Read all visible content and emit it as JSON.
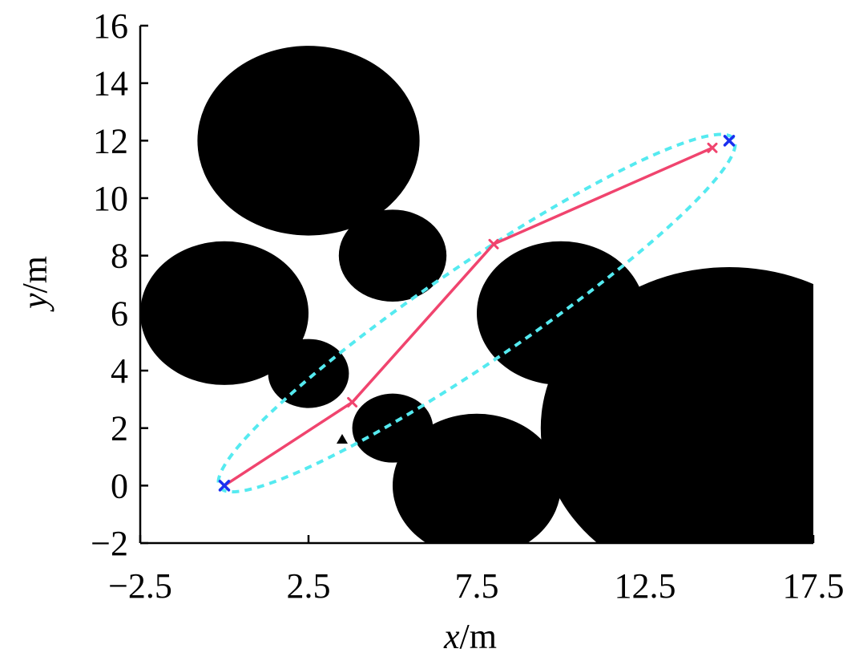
{
  "chart_data": {
    "type": "scatter",
    "xlabel": {
      "var": "x",
      "unit": "/m"
    },
    "ylabel": {
      "var": "y",
      "unit": "/m"
    },
    "xlim": [
      -2.5,
      17.5
    ],
    "ylim": [
      -2,
      16
    ],
    "x_ticks": [
      -2.5,
      2.5,
      7.5,
      12.5,
      17.5
    ],
    "x_tick_labels": [
      "−2.5",
      "2.5",
      "7.5",
      "12.5",
      "17.5"
    ],
    "y_ticks": [
      -2,
      0,
      2,
      4,
      6,
      8,
      10,
      12,
      14,
      16
    ],
    "y_tick_labels": [
      "−2",
      "0",
      "2",
      "4",
      "6",
      "8",
      "10",
      "12",
      "14",
      "16"
    ],
    "grid": false,
    "obstacles": [
      {
        "cx": 2.5,
        "cy": 12.0,
        "r": 3.3
      },
      {
        "cx": 5.0,
        "cy": 8.0,
        "r": 1.6
      },
      {
        "cx": 0.0,
        "cy": 6.0,
        "r": 2.5
      },
      {
        "cx": 2.5,
        "cy": 3.9,
        "r": 1.2
      },
      {
        "cx": 5.0,
        "cy": 2.0,
        "r": 1.2
      },
      {
        "cx": 7.5,
        "cy": 0.0,
        "r": 2.5
      },
      {
        "cx": 10.0,
        "cy": 6.0,
        "r": 2.5
      },
      {
        "cx": 15.0,
        "cy": 2.0,
        "r": 5.6
      }
    ],
    "ellipse": {
      "cx": 7.5,
      "cy": 6.0,
      "semi_major": 9.75,
      "semi_minor": 1.6,
      "angle_deg": 38.66,
      "color": "#55eaf0"
    },
    "path": {
      "color": "#f0446e",
      "points": [
        [
          0,
          0
        ],
        [
          3.8,
          2.9
        ],
        [
          8.0,
          8.4
        ],
        [
          14.5,
          11.75
        ]
      ]
    },
    "start": {
      "x": 0,
      "y": 0,
      "color": "#1a2ff0"
    },
    "goal": {
      "x": 15.0,
      "y": 12.0,
      "color": "#1a2ff0"
    },
    "triangle_marker": {
      "x": 3.5,
      "y": 1.6,
      "color": "#000000"
    },
    "colors": {
      "obstacle": "#000000",
      "axis": "#000000"
    }
  }
}
